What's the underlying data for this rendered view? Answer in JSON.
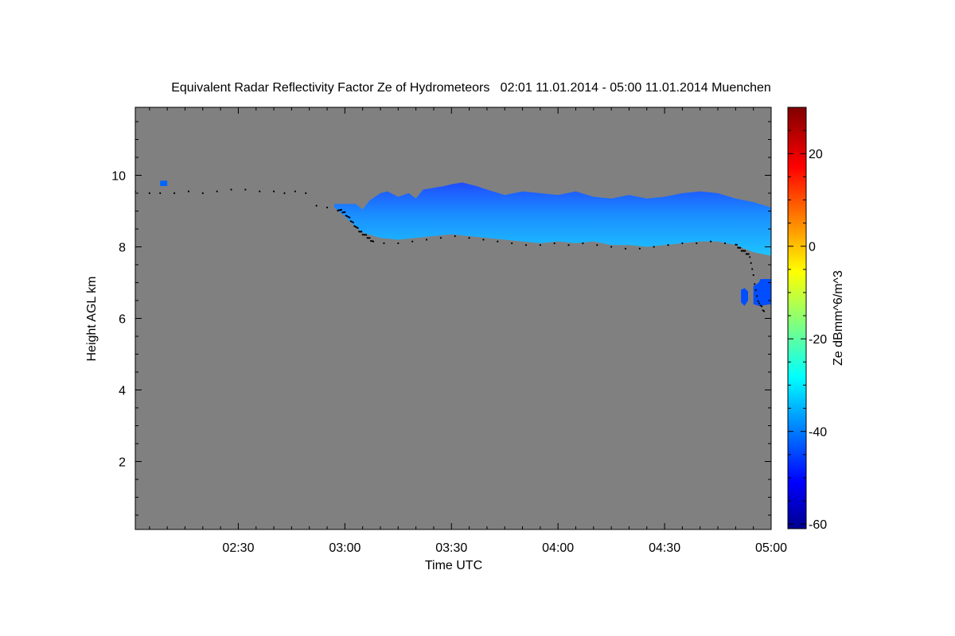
{
  "chart_data": {
    "type": "heatmap",
    "title": "Equivalent Radar Reflectivity Factor Ze of Hydrometeors   02:01 11.01.2014 - 05:00 11.01.2014 Muenchen",
    "xlabel": "Time UTC",
    "ylabel": "Height AGL km",
    "colorbar_label": "Ze dBmm^6/m^3",
    "x_range_minutes_utc": [
      121,
      300
    ],
    "x_ticks": [
      {
        "minute": 150,
        "label": "02:30"
      },
      {
        "minute": 180,
        "label": "03:00"
      },
      {
        "minute": 210,
        "label": "03:30"
      },
      {
        "minute": 240,
        "label": "04:00"
      },
      {
        "minute": 270,
        "label": "04:30"
      },
      {
        "minute": 300,
        "label": "05:00"
      }
    ],
    "ylim_km": [
      0.1,
      11.9
    ],
    "y_ticks": [
      2,
      4,
      6,
      8,
      10
    ],
    "colorbar_range": [
      -61,
      30
    ],
    "colorbar_ticks": [
      20,
      0,
      -20,
      -40,
      -60
    ],
    "background_color": "#808080",
    "colormap": [
      "#00008f",
      "#0000ff",
      "#00ffff",
      "#ffff00",
      "#ff0000",
      "#800000"
    ],
    "cloud_layers": [
      {
        "name": "main cloud layer",
        "ze_dbz": -32,
        "top_km": [
          [
            177,
            9.2
          ],
          [
            183,
            9.2
          ],
          [
            185,
            9.05
          ],
          [
            187,
            9.3
          ],
          [
            190,
            9.5
          ],
          [
            192,
            9.55
          ],
          [
            195,
            9.4
          ],
          [
            198,
            9.5
          ],
          [
            200,
            9.35
          ],
          [
            202,
            9.6
          ],
          [
            205,
            9.65
          ],
          [
            208,
            9.7
          ],
          [
            210,
            9.75
          ],
          [
            213,
            9.8
          ],
          [
            215,
            9.75
          ],
          [
            217,
            9.7
          ],
          [
            220,
            9.6
          ],
          [
            225,
            9.45
          ],
          [
            230,
            9.55
          ],
          [
            235,
            9.5
          ],
          [
            240,
            9.45
          ],
          [
            245,
            9.55
          ],
          [
            250,
            9.4
          ],
          [
            255,
            9.35
          ],
          [
            260,
            9.45
          ],
          [
            265,
            9.35
          ],
          [
            270,
            9.4
          ],
          [
            275,
            9.5
          ],
          [
            280,
            9.55
          ],
          [
            285,
            9.5
          ],
          [
            290,
            9.35
          ],
          [
            295,
            9.25
          ],
          [
            300,
            9.1
          ]
        ],
        "base_km": [
          [
            177,
            9.1
          ],
          [
            180,
            8.85
          ],
          [
            182,
            8.65
          ],
          [
            185,
            8.4
          ],
          [
            190,
            8.25
          ],
          [
            195,
            8.2
          ],
          [
            200,
            8.25
          ],
          [
            205,
            8.3
          ],
          [
            210,
            8.35
          ],
          [
            215,
            8.3
          ],
          [
            220,
            8.25
          ],
          [
            225,
            8.2
          ],
          [
            230,
            8.15
          ],
          [
            235,
            8.1
          ],
          [
            240,
            8.15
          ],
          [
            245,
            8.1
          ],
          [
            250,
            8.15
          ],
          [
            255,
            8.05
          ],
          [
            260,
            8.05
          ],
          [
            265,
            8.0
          ],
          [
            270,
            8.05
          ],
          [
            275,
            8.1
          ],
          [
            280,
            8.15
          ],
          [
            285,
            8.15
          ],
          [
            290,
            8.05
          ],
          [
            295,
            7.85
          ],
          [
            300,
            7.75
          ]
        ]
      },
      {
        "name": "lower cell",
        "ze_dbz": -44,
        "top_km": [
          [
            295,
            6.9
          ],
          [
            296.5,
            7.0
          ],
          [
            297,
            7.1
          ],
          [
            300,
            7.1
          ]
        ],
        "base_km": [
          [
            295,
            6.4
          ],
          [
            296.5,
            6.35
          ],
          [
            297,
            6.35
          ],
          [
            300,
            6.4
          ]
        ]
      },
      {
        "name": "small cell",
        "ze_dbz": -44,
        "top_km": [
          [
            291.5,
            6.8
          ],
          [
            292.5,
            6.85
          ],
          [
            293.5,
            6.75
          ]
        ],
        "base_km": [
          [
            291.5,
            6.45
          ],
          [
            292.5,
            6.35
          ],
          [
            293.5,
            6.5
          ]
        ]
      },
      {
        "name": "isolated echo",
        "ze_dbz": -42,
        "top_km": [
          [
            128,
            9.85
          ],
          [
            130,
            9.85
          ]
        ],
        "base_km": [
          [
            128,
            9.7
          ],
          [
            130,
            9.7
          ]
        ]
      }
    ],
    "cloud_base_dots_km": [
      [
        121,
        9.55
      ],
      [
        125,
        9.5
      ],
      [
        128,
        9.5
      ],
      [
        132,
        9.5
      ],
      [
        136,
        9.55
      ],
      [
        140,
        9.5
      ],
      [
        144,
        9.55
      ],
      [
        148,
        9.6
      ],
      [
        152,
        9.6
      ],
      [
        156,
        9.55
      ],
      [
        160,
        9.55
      ],
      [
        163,
        9.5
      ],
      [
        166,
        9.55
      ],
      [
        169,
        9.5
      ],
      [
        172,
        9.15
      ],
      [
        175,
        9.1
      ],
      [
        178,
        9.05
      ],
      [
        180,
        8.95
      ],
      [
        182,
        8.7
      ],
      [
        184,
        8.45
      ],
      [
        186,
        8.3
      ],
      [
        188,
        8.15
      ],
      [
        191,
        8.1
      ],
      [
        195,
        8.1
      ],
      [
        199,
        8.15
      ],
      [
        203,
        8.2
      ],
      [
        207,
        8.25
      ],
      [
        211,
        8.3
      ],
      [
        215,
        8.25
      ],
      [
        219,
        8.2
      ],
      [
        223,
        8.15
      ],
      [
        227,
        8.1
      ],
      [
        231,
        8.05
      ],
      [
        235,
        8.05
      ],
      [
        239,
        8.1
      ],
      [
        243,
        8.05
      ],
      [
        247,
        8.1
      ],
      [
        251,
        8.05
      ],
      [
        255,
        8.0
      ],
      [
        259,
        7.95
      ],
      [
        263,
        7.95
      ],
      [
        267,
        8.0
      ],
      [
        271,
        8.05
      ],
      [
        275,
        8.1
      ],
      [
        279,
        8.1
      ],
      [
        283,
        8.15
      ],
      [
        287,
        8.1
      ],
      [
        290,
        8.05
      ],
      [
        292,
        7.9
      ],
      [
        294,
        7.75
      ],
      [
        296,
        6.6
      ],
      [
        297,
        6.35
      ],
      [
        298,
        6.2
      ]
    ]
  }
}
